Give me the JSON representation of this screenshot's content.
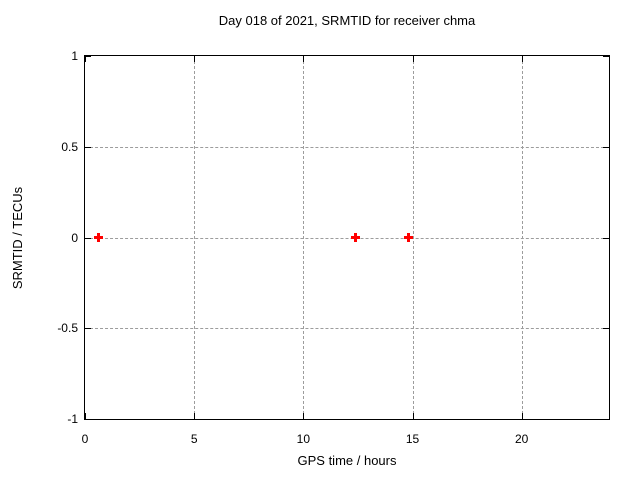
{
  "chart_data": {
    "type": "scatter",
    "title": "Day 018 of 2021, SRMTID for receiver chma",
    "xlabel": "GPS time / hours",
    "ylabel": "SRMTID / TECUs",
    "xlim": [
      0,
      24
    ],
    "ylim": [
      -1,
      1
    ],
    "xticks": [
      0,
      5,
      10,
      15,
      20
    ],
    "yticks": [
      -1,
      -0.5,
      0,
      0.5,
      1
    ],
    "grid": true,
    "legend_visible": false,
    "grid_color": "#9c9c9c",
    "border_color": "#000000",
    "background_color": "#ffffff",
    "series": [
      {
        "name": "SRMTID",
        "marker": "plus",
        "color": "#ff0000",
        "points": [
          [
            0.6,
            0.0
          ],
          [
            12.4,
            0.0
          ],
          [
            14.8,
            0.0
          ]
        ]
      }
    ]
  }
}
